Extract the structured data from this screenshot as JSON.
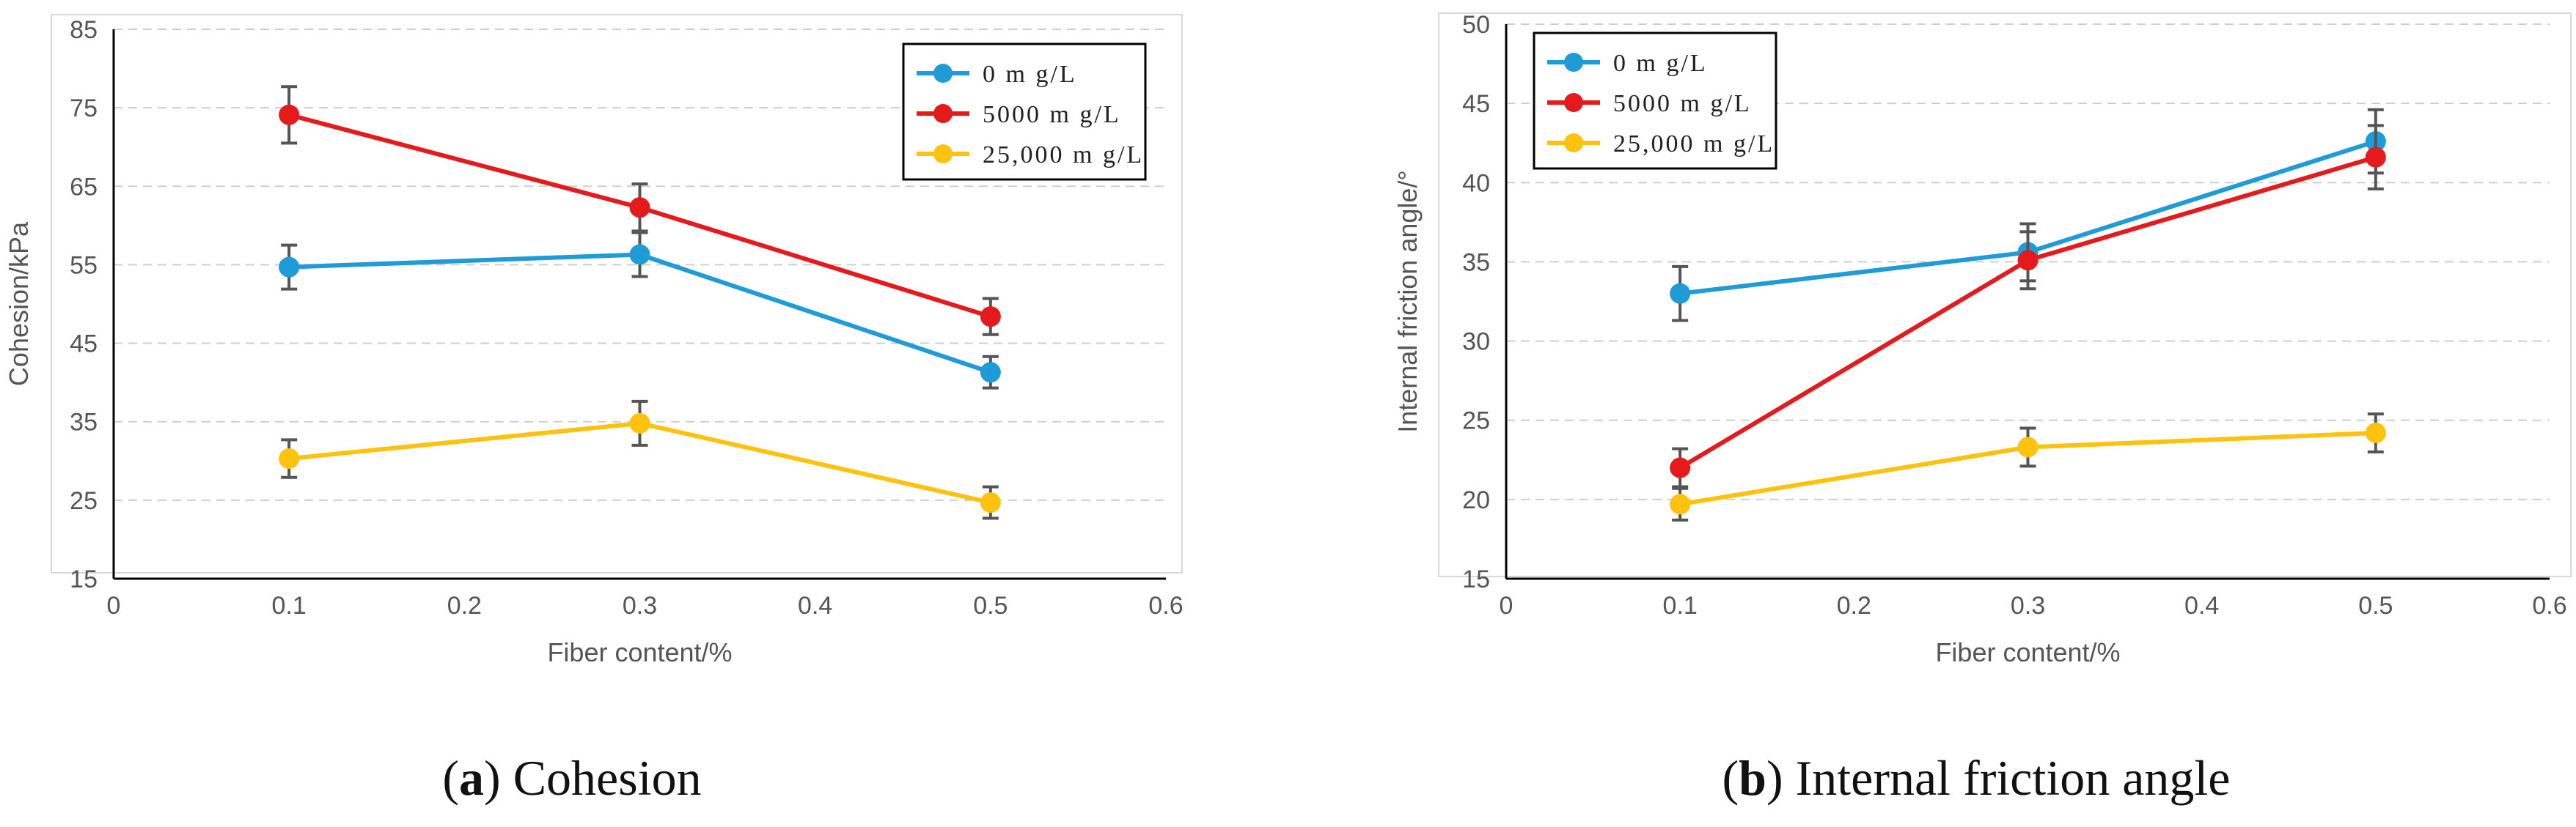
{
  "charts": [
    {
      "caption": {
        "open": "(",
        "letter": "a",
        "close": ")",
        "text": " Cohesion"
      },
      "chart_data": {
        "type": "line",
        "title": "",
        "xlabel": "Fiber content/%",
        "ylabel": "Cohesion/kPa",
        "xlim": [
          0,
          0.6
        ],
        "ylim": [
          15,
          85
        ],
        "xticks": [
          "0",
          "0.1",
          "0.2",
          "0.3",
          "0.4",
          "0.5",
          "0.6"
        ],
        "yticks": [
          "15",
          "25",
          "35",
          "45",
          "55",
          "65",
          "75",
          "85"
        ],
        "grid": "horizontal-dashed",
        "legend_position": "top-right",
        "x": [
          0.1,
          0.3,
          0.5
        ],
        "series": [
          {
            "name": "0 m g/L",
            "color": "#1f9bd7",
            "values": [
              54.7,
              56.3,
              41.3
            ],
            "errors": [
              2.8,
              2.8,
              2.0
            ]
          },
          {
            "name": "5000 m g/L",
            "color": "#e41a1c",
            "values": [
              74.1,
              62.3,
              48.4
            ],
            "errors": [
              3.6,
              3.0,
              2.3
            ]
          },
          {
            "name": "25,000 m g/L",
            "color": "#ffc20e",
            "values": [
              30.3,
              34.8,
              24.7
            ],
            "errors": [
              2.4,
              2.8,
              2.0
            ]
          }
        ]
      }
    },
    {
      "caption": {
        "open": "(",
        "letter": "b",
        "close": ")",
        "text": " Internal friction angle"
      },
      "chart_data": {
        "type": "line",
        "title": "",
        "xlabel": "Fiber content/%",
        "ylabel": "Internal friction angle/°",
        "xlim": [
          0,
          0.6
        ],
        "ylim": [
          15,
          50
        ],
        "xticks": [
          "0",
          "0.1",
          "0.2",
          "0.3",
          "0.4",
          "0.5",
          "0.6"
        ],
        "yticks": [
          "15",
          "20",
          "25",
          "30",
          "35",
          "40",
          "45",
          "50"
        ],
        "grid": "horizontal-dashed",
        "legend_position": "top-left",
        "x": [
          0.1,
          0.3,
          0.5
        ],
        "series": [
          {
            "name": "0 m g/L",
            "color": "#1f9bd7",
            "values": [
              33.0,
              35.6,
              42.6
            ],
            "errors": [
              1.7,
              1.8,
              2.0
            ]
          },
          {
            "name": "5000 m g/L",
            "color": "#e41a1c",
            "values": [
              22.0,
              35.1,
              41.6
            ],
            "errors": [
              1.2,
              1.8,
              2.0
            ]
          },
          {
            "name": "25,000 m g/L",
            "color": "#ffc20e",
            "values": [
              19.7,
              23.3,
              24.2
            ],
            "errors": [
              1.0,
              1.2,
              1.2
            ]
          }
        ]
      }
    }
  ]
}
